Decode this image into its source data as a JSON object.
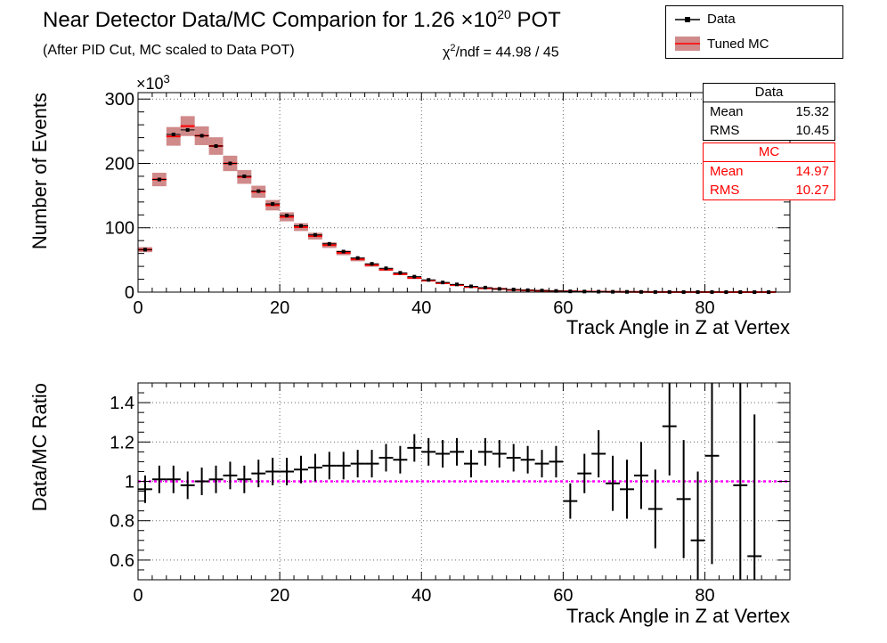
{
  "title": {
    "main": "Near Detector Data/MC Comparion for 1.26 ",
    "times": "×10",
    "exp": "20",
    "tail": " POT"
  },
  "subtitle": "(After PID Cut, MC scaled to Data POT)",
  "chi2": {
    "chi": "χ",
    "exp": "2",
    "rest": "/ndf = 44.98 / 45"
  },
  "legend": {
    "data_label": "Data",
    "mc_label": "Tuned MC"
  },
  "stats": {
    "data": {
      "header": "Data",
      "mean_label": "Mean",
      "mean": "15.32",
      "rms_label": "RMS",
      "rms": "10.45"
    },
    "mc": {
      "header": "MC",
      "mean_label": "Mean",
      "mean": "14.97",
      "rms_label": "RMS",
      "rms": "10.27",
      "color": "#ff0000"
    }
  },
  "colors": {
    "mc_band": "#d08a8a",
    "mc_center": "#ff0000",
    "data": "#000000",
    "unity_line": "#ff00ff"
  },
  "chart_data": [
    {
      "type": "bar",
      "name": "top",
      "xlabel": "Track Angle in Z at Vertex",
      "ylabel": "Number of Events",
      "y_multiplier_label": {
        "times": "×10",
        "exp": "3"
      },
      "xlim": [
        0,
        92
      ],
      "ylim": [
        0,
        310
      ],
      "xticks": [
        0,
        20,
        40,
        60,
        80
      ],
      "yticks": [
        0,
        100,
        200,
        300
      ],
      "grid": true,
      "bin_width": 2,
      "x": [
        1,
        3,
        5,
        7,
        9,
        11,
        13,
        15,
        17,
        19,
        21,
        23,
        25,
        27,
        29,
        31,
        33,
        35,
        37,
        39,
        41,
        43,
        45,
        47,
        49,
        51,
        53,
        55,
        57,
        59,
        61,
        63,
        65,
        67,
        69,
        71,
        73,
        75,
        77,
        79,
        81,
        83,
        85,
        87,
        89
      ],
      "series": [
        {
          "name": "Data",
          "values": [
            66,
            175,
            245,
            252,
            243,
            227,
            200,
            180,
            157,
            137,
            119,
            103,
            89,
            75,
            63,
            53,
            44,
            37,
            30,
            24,
            19,
            15,
            12,
            9,
            7,
            5,
            4,
            3,
            2.4,
            1.8,
            1.2,
            0.9,
            0.7,
            0.5,
            0.4,
            0.3,
            0.2,
            0.2,
            0.1,
            0.1,
            0.1,
            0.05,
            0.05,
            0.05,
            0.05
          ]
        },
        {
          "name": "Tuned MC",
          "values": [
            66,
            175,
            242,
            258,
            243,
            227,
            200,
            179,
            156,
            135,
            117,
            101,
            87,
            73,
            61,
            51,
            42,
            35,
            28,
            22,
            18,
            14,
            11,
            8,
            6,
            5,
            3.5,
            2.7,
            2.1,
            1.6,
            1.2,
            0.9,
            0.7,
            0.5,
            0.4,
            0.3,
            0.2,
            0.2,
            0.1,
            0.1,
            0.1,
            0.05,
            0.05,
            0.05,
            0.05
          ]
        }
      ]
    },
    {
      "type": "scatter",
      "name": "ratio",
      "xlabel": "Track Angle in Z at Vertex",
      "ylabel": "Data/MC Ratio",
      "xlim": [
        0,
        92
      ],
      "ylim": [
        0.5,
        1.5
      ],
      "xticks": [
        0,
        20,
        40,
        60,
        80
      ],
      "yticks": [
        0.6,
        0.8,
        1.0,
        1.2,
        1.4
      ],
      "ytick_labels": [
        "0.6",
        "0.8",
        "1",
        "1.2",
        "1.4"
      ],
      "grid": true,
      "reference_line": 1.0,
      "bin_width": 2,
      "x": [
        1,
        3,
        5,
        7,
        9,
        11,
        13,
        15,
        17,
        19,
        21,
        23,
        25,
        27,
        29,
        31,
        33,
        35,
        37,
        39,
        41,
        43,
        45,
        47,
        49,
        51,
        53,
        55,
        57,
        59,
        61,
        63,
        65,
        67,
        69,
        71,
        73,
        75,
        77,
        79,
        81,
        83,
        85,
        87
      ],
      "y": [
        0.96,
        1.01,
        1.01,
        0.98,
        1.0,
        1.01,
        1.03,
        1.01,
        1.04,
        1.05,
        1.05,
        1.06,
        1.07,
        1.08,
        1.08,
        1.09,
        1.09,
        1.12,
        1.11,
        1.17,
        1.15,
        1.14,
        1.15,
        1.09,
        1.15,
        1.14,
        1.12,
        1.11,
        1.09,
        1.1,
        0.9,
        1.04,
        1.14,
        0.99,
        0.96,
        1.03,
        0.86,
        1.28,
        0.91,
        0.7,
        1.13,
        null,
        0.98,
        0.62
      ],
      "err": [
        0.07,
        0.07,
        0.07,
        0.07,
        0.07,
        0.07,
        0.07,
        0.07,
        0.07,
        0.07,
        0.07,
        0.07,
        0.07,
        0.07,
        0.07,
        0.07,
        0.07,
        0.07,
        0.07,
        0.07,
        0.07,
        0.07,
        0.07,
        0.07,
        0.07,
        0.07,
        0.07,
        0.07,
        0.07,
        0.08,
        0.09,
        0.1,
        0.12,
        0.14,
        0.15,
        0.17,
        0.2,
        0.25,
        0.3,
        0.35,
        0.55,
        null,
        0.6,
        0.72
      ]
    }
  ]
}
